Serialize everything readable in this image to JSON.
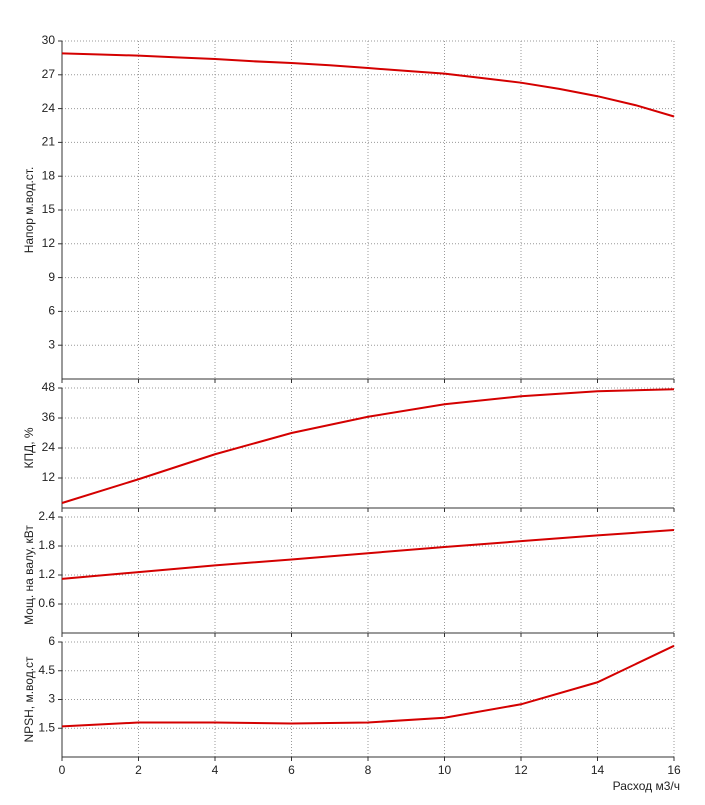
{
  "chart_data": [
    {
      "type": "line",
      "ylabel": "Напор м.вод.ст.",
      "x": [
        0,
        1,
        2,
        3,
        4,
        5,
        6,
        7,
        8,
        9,
        10,
        11,
        12,
        13,
        14,
        15,
        16
      ],
      "series": [
        {
          "color": "#d40000",
          "values": [
            28.9,
            28.8,
            28.7,
            28.55,
            28.4,
            28.2,
            28.05,
            27.85,
            27.6,
            27.35,
            27.1,
            26.7,
            26.3,
            25.75,
            25.1,
            24.3,
            23.3
          ]
        }
      ],
      "xlim": [
        0,
        16
      ],
      "xticks": [
        0,
        2,
        4,
        6,
        8,
        10,
        12,
        14,
        16
      ],
      "ylim": [
        0,
        30
      ],
      "yticks": [
        3,
        6,
        9,
        12,
        15,
        18,
        21,
        24,
        27,
        30
      ],
      "grid": true
    },
    {
      "type": "line",
      "ylabel": "КПД, %",
      "x": [
        0,
        2,
        4,
        6,
        8,
        10,
        12,
        14,
        16
      ],
      "series": [
        {
          "color": "#d40000",
          "values": [
            2,
            11.5,
            21.5,
            30,
            36.5,
            41.5,
            44.7,
            46.7,
            47.5
          ]
        }
      ],
      "xlim": [
        0,
        16
      ],
      "xticks": [
        0,
        2,
        4,
        6,
        8,
        10,
        12,
        14,
        16
      ],
      "ylim": [
        0,
        48
      ],
      "yticks": [
        12,
        24,
        36,
        48
      ],
      "grid": true
    },
    {
      "type": "line",
      "ylabel": "Мощ. на валу, кВт",
      "x": [
        0,
        2,
        4,
        6,
        8,
        10,
        12,
        14,
        16
      ],
      "series": [
        {
          "color": "#d40000",
          "values": [
            1.12,
            1.26,
            1.4,
            1.52,
            1.65,
            1.78,
            1.9,
            2.02,
            2.13
          ]
        }
      ],
      "xlim": [
        0,
        16
      ],
      "xticks": [
        0,
        2,
        4,
        6,
        8,
        10,
        12,
        14,
        16
      ],
      "ylim": [
        0,
        2.4
      ],
      "yticks": [
        0.6,
        1.2,
        1.8,
        2.4
      ],
      "grid": true
    },
    {
      "type": "line",
      "ylabel": "NPSH, м.вод.ст",
      "xlabel": "Расход м3/ч",
      "x": [
        0,
        2,
        4,
        6,
        8,
        10,
        12,
        14,
        16
      ],
      "series": [
        {
          "color": "#d40000",
          "values": [
            1.6,
            1.8,
            1.8,
            1.75,
            1.8,
            2.05,
            2.75,
            3.9,
            5.8
          ]
        }
      ],
      "xlim": [
        0,
        16
      ],
      "xticks": [
        0,
        2,
        4,
        6,
        8,
        10,
        12,
        14,
        16
      ],
      "ylim": [
        0,
        6
      ],
      "yticks": [
        1.5,
        3,
        4.5,
        6
      ],
      "grid": true
    }
  ]
}
